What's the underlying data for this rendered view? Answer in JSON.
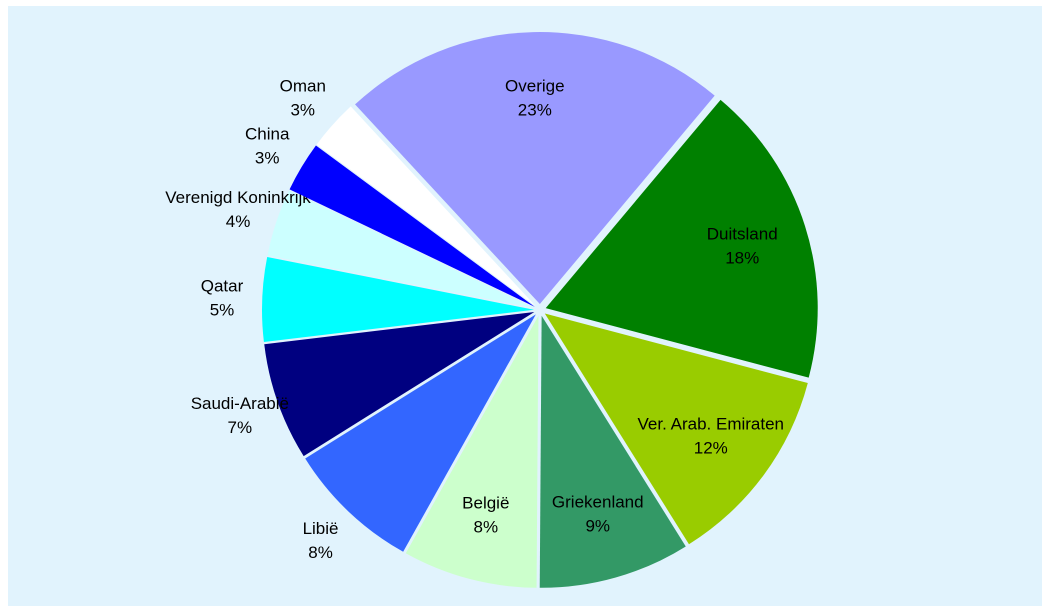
{
  "chart_data": {
    "type": "pie",
    "categories": [
      "Duitsland",
      "Ver. Arab. Emiraten",
      "Griekenland",
      "België",
      "Libië",
      "Saudi-Arabië",
      "Qatar",
      "Verenigd Koninkrijk",
      "China",
      "Oman",
      "Overige"
    ],
    "values": [
      18,
      12,
      9,
      8,
      8,
      7,
      5,
      4,
      3,
      3,
      23
    ],
    "value_labels": [
      "18%",
      "12%",
      "9%",
      "8%",
      "8%",
      "7%",
      "5%",
      "4%",
      "3%",
      "3%",
      "23%"
    ],
    "colors": [
      "#008000",
      "#99cc00",
      "#339966",
      "#ccffcc",
      "#3366ff",
      "#000080",
      "#00ffff",
      "#ccffff",
      "#0000ff",
      "#ffffff",
      "#9999ff"
    ]
  }
}
